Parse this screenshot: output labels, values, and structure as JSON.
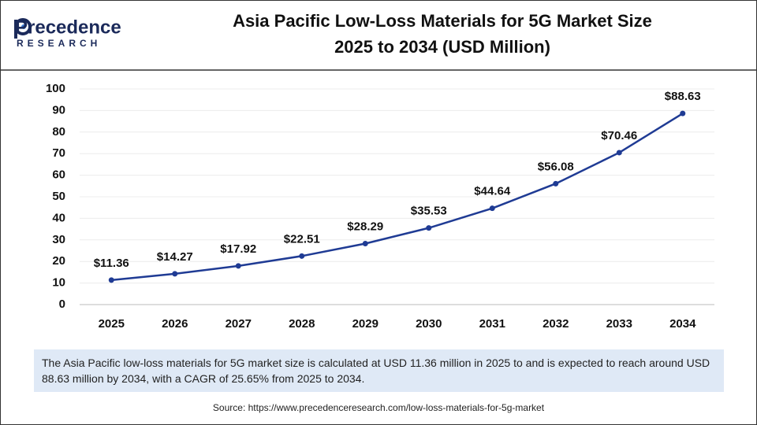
{
  "logo": {
    "name": "Precedence",
    "sub": "RESEARCH"
  },
  "chart_data": {
    "type": "line",
    "title": "Asia Pacific Low-Loss Materials for 5G Market Size",
    "subtitle": "2025 to 2034 (USD Million)",
    "categories": [
      "2025",
      "2026",
      "2027",
      "2028",
      "2029",
      "2030",
      "2031",
      "2032",
      "2033",
      "2034"
    ],
    "values": [
      11.36,
      14.27,
      17.92,
      22.51,
      28.29,
      35.53,
      44.64,
      56.08,
      70.46,
      88.63
    ],
    "value_labels": [
      "$11.36",
      "$14.27",
      "$17.92",
      "$22.51",
      "$28.29",
      "$35.53",
      "$44.64",
      "$56.08",
      "$70.46",
      "$88.63"
    ],
    "color": "#1f3b94",
    "ylim": [
      0,
      100
    ],
    "yticks": [
      0,
      10,
      20,
      30,
      40,
      50,
      60,
      70,
      80,
      90,
      100
    ],
    "grid": true
  },
  "description": "The Asia Pacific low-loss materials for 5G market size is calculated at USD 11.36 million in 2025 to and is expected to reach around USD 88.63 million by 2034, with a CAGR of 25.65% from 2025 to 2034.",
  "source": "Source: https://www.precedenceresearch.com/low-loss-materials-for-5g-market"
}
